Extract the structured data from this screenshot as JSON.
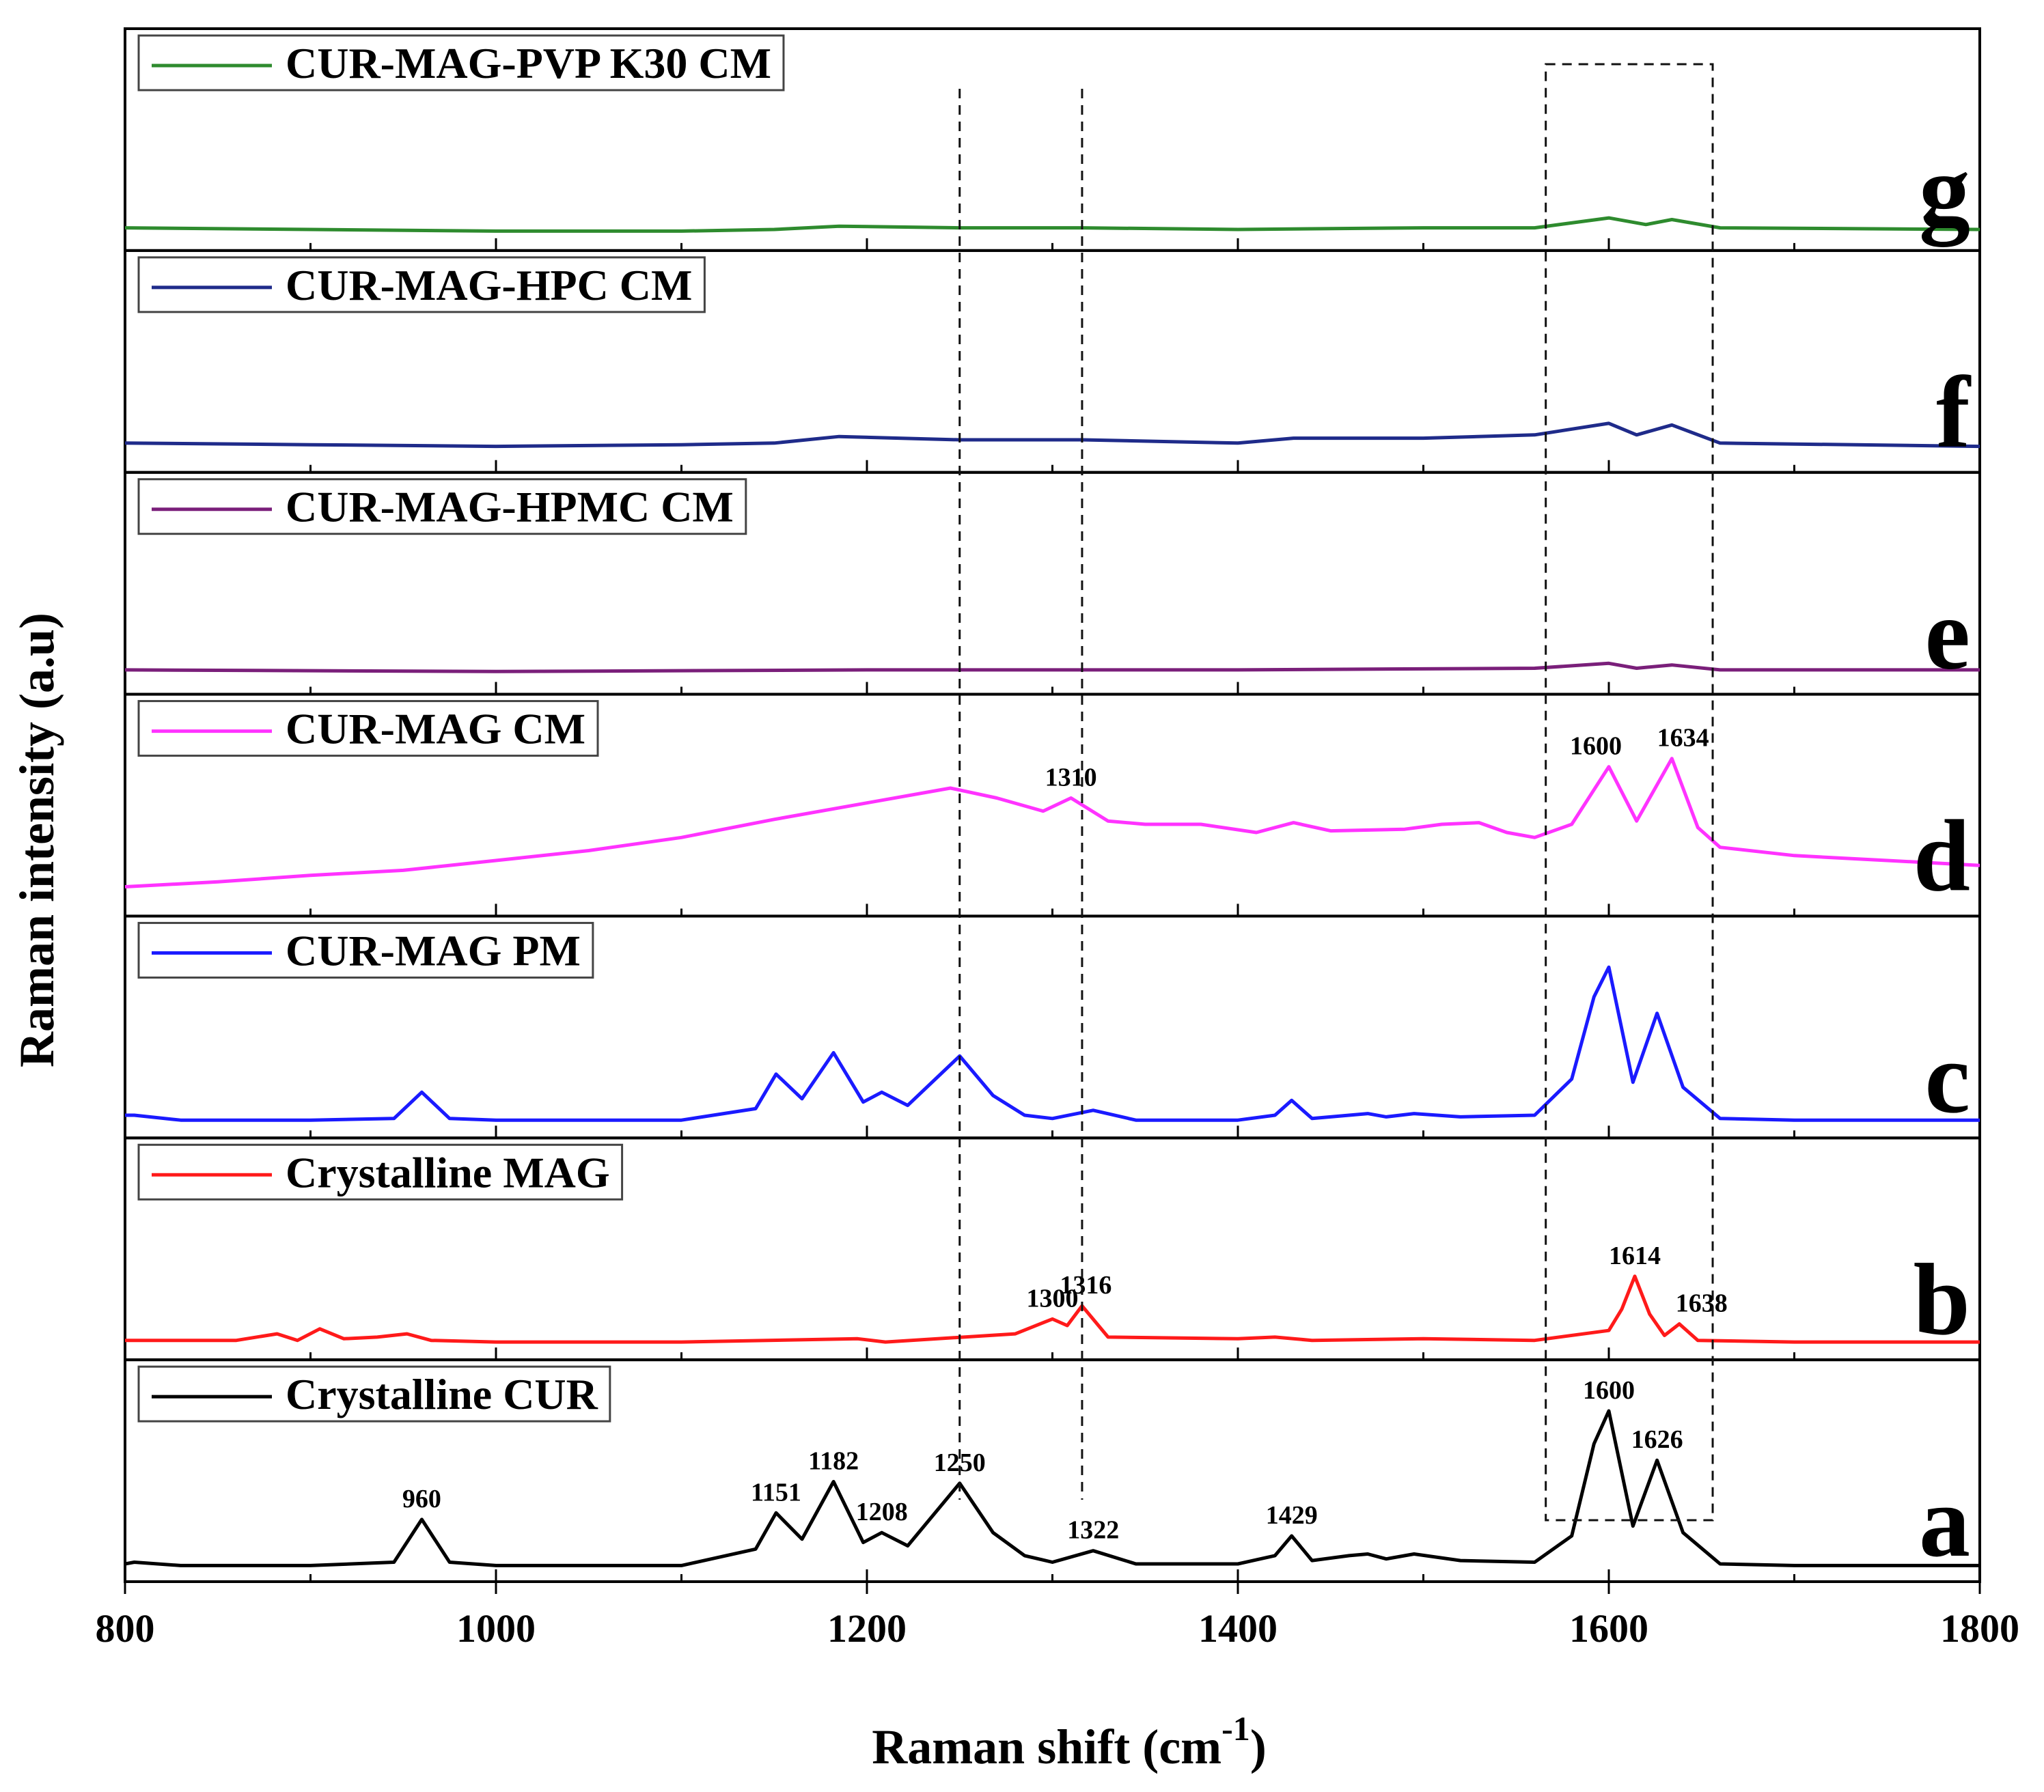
{
  "chart_data": {
    "type": "line",
    "title": "",
    "xlabel": "Raman shift (cm",
    "xlabel_sup": "-1",
    "xlabel_close": ")",
    "ylabel": "Raman intensity (a.u)",
    "xlim": [
      800,
      1800
    ],
    "xticks": [
      "800",
      "1000",
      "1200",
      "1400",
      "1600",
      "1800"
    ],
    "xtick_values": [
      800,
      1000,
      1200,
      1400,
      1600,
      1800
    ],
    "minor_tick_step": 100,
    "dashed_lines": [
      1250,
      1316
    ],
    "dashed_box_x": [
      1566,
      1656
    ],
    "panels": [
      {
        "letter": "g",
        "name": "CUR-MAG-PVP K30 CM",
        "color": "#2e8b2e",
        "baseline": 0.08,
        "x": [
          800,
          900,
          1000,
          1100,
          1150,
          1185,
          1250,
          1316,
          1400,
          1500,
          1560,
          1600,
          1620,
          1634,
          1660,
          1800
        ],
        "y": [
          0.08,
          0.07,
          0.06,
          0.06,
          0.07,
          0.09,
          0.08,
          0.08,
          0.07,
          0.08,
          0.08,
          0.14,
          0.1,
          0.13,
          0.08,
          0.07
        ],
        "peak_labels": []
      },
      {
        "letter": "f",
        "name": "CUR-MAG-HPC CM",
        "color": "#1f2b8a",
        "baseline": 0.12,
        "x": [
          800,
          900,
          1000,
          1100,
          1150,
          1185,
          1250,
          1316,
          1400,
          1430,
          1500,
          1560,
          1600,
          1615,
          1634,
          1660,
          1800
        ],
        "y": [
          0.12,
          0.11,
          0.1,
          0.11,
          0.12,
          0.16,
          0.14,
          0.14,
          0.12,
          0.15,
          0.15,
          0.17,
          0.24,
          0.17,
          0.23,
          0.12,
          0.1
        ],
        "peak_labels": []
      },
      {
        "letter": "e",
        "name": "CUR-MAG-HPMC CM",
        "color": "#7a1f7a",
        "baseline": 0.09,
        "x": [
          800,
          1000,
          1200,
          1400,
          1560,
          1600,
          1615,
          1634,
          1660,
          1800
        ],
        "y": [
          0.09,
          0.08,
          0.09,
          0.09,
          0.1,
          0.13,
          0.1,
          0.12,
          0.09,
          0.09
        ],
        "peak_labels": []
      },
      {
        "letter": "d",
        "name": "CUR-MAG CM",
        "color": "#ff33ff",
        "baseline": 0.12,
        "x": [
          800,
          850,
          900,
          950,
          1000,
          1050,
          1100,
          1150,
          1200,
          1245,
          1270,
          1295,
          1310,
          1330,
          1350,
          1380,
          1410,
          1430,
          1450,
          1490,
          1510,
          1530,
          1545,
          1560,
          1580,
          1600,
          1615,
          1634,
          1648,
          1660,
          1700,
          1750,
          1800
        ],
        "y": [
          0.12,
          0.15,
          0.19,
          0.22,
          0.28,
          0.34,
          0.42,
          0.53,
          0.63,
          0.72,
          0.66,
          0.58,
          0.66,
          0.52,
          0.5,
          0.5,
          0.45,
          0.51,
          0.46,
          0.47,
          0.5,
          0.51,
          0.45,
          0.42,
          0.5,
          0.85,
          0.52,
          0.9,
          0.48,
          0.36,
          0.31,
          0.28,
          0.25
        ],
        "peak_labels": [
          {
            "x": 1310,
            "y": 0.66,
            "text": "1310"
          },
          {
            "x": 1593,
            "y": 0.85,
            "text": "1600"
          },
          {
            "x": 1640,
            "y": 0.9,
            "text": "1634"
          }
        ]
      },
      {
        "letter": "c",
        "name": "CUR-MAG PM",
        "color": "#1a1aff",
        "baseline": 0.05,
        "x": [
          800,
          805,
          830,
          900,
          945,
          960,
          975,
          1000,
          1100,
          1140,
          1151,
          1165,
          1182,
          1198,
          1208,
          1222,
          1250,
          1268,
          1285,
          1300,
          1322,
          1345,
          1400,
          1420,
          1429,
          1440,
          1460,
          1470,
          1480,
          1495,
          1520,
          1560,
          1580,
          1592,
          1600,
          1613,
          1626,
          1640,
          1660,
          1700,
          1800
        ],
        "y": [
          0.08,
          0.08,
          0.05,
          0.05,
          0.06,
          0.22,
          0.06,
          0.05,
          0.05,
          0.12,
          0.33,
          0.18,
          0.46,
          0.16,
          0.22,
          0.14,
          0.44,
          0.2,
          0.08,
          0.06,
          0.11,
          0.05,
          0.05,
          0.08,
          0.17,
          0.06,
          0.08,
          0.09,
          0.07,
          0.09,
          0.07,
          0.08,
          0.3,
          0.8,
          0.98,
          0.28,
          0.7,
          0.25,
          0.06,
          0.05,
          0.05
        ],
        "peak_labels": []
      },
      {
        "letter": "b",
        "name": "Crystalline MAG",
        "color": "#ff1a1a",
        "baseline": 0.06,
        "x": [
          800,
          860,
          882,
          893,
          905,
          918,
          936,
          952,
          965,
          1000,
          1100,
          1195,
          1210,
          1280,
          1300,
          1308,
          1316,
          1330,
          1400,
          1420,
          1440,
          1500,
          1560,
          1600,
          1607,
          1614,
          1622,
          1630,
          1638,
          1648,
          1700,
          1800
        ],
        "y": [
          0.06,
          0.06,
          0.1,
          0.06,
          0.13,
          0.07,
          0.08,
          0.1,
          0.06,
          0.05,
          0.05,
          0.07,
          0.05,
          0.1,
          0.19,
          0.15,
          0.27,
          0.08,
          0.07,
          0.08,
          0.06,
          0.07,
          0.06,
          0.12,
          0.25,
          0.45,
          0.22,
          0.09,
          0.16,
          0.06,
          0.05,
          0.05
        ],
        "peak_labels": [
          {
            "x": 1300,
            "y": 0.19,
            "text": "1300"
          },
          {
            "x": 1318,
            "y": 0.27,
            "text": "1316"
          },
          {
            "x": 1614,
            "y": 0.45,
            "text": "1614"
          },
          {
            "x": 1650,
            "y": 0.16,
            "text": "1638"
          }
        ]
      },
      {
        "letter": "a",
        "name": "Crystalline CUR",
        "color": "#000000",
        "baseline": 0.05,
        "x": [
          800,
          805,
          830,
          900,
          945,
          960,
          975,
          1000,
          1100,
          1140,
          1151,
          1165,
          1182,
          1198,
          1208,
          1222,
          1250,
          1268,
          1285,
          1300,
          1322,
          1345,
          1400,
          1420,
          1429,
          1440,
          1460,
          1470,
          1480,
          1495,
          1520,
          1560,
          1580,
          1592,
          1600,
          1613,
          1626,
          1640,
          1660,
          1700,
          1800
        ],
        "y": [
          0.05,
          0.06,
          0.04,
          0.04,
          0.06,
          0.32,
          0.06,
          0.04,
          0.04,
          0.14,
          0.36,
          0.2,
          0.55,
          0.18,
          0.24,
          0.16,
          0.54,
          0.24,
          0.1,
          0.06,
          0.13,
          0.05,
          0.05,
          0.1,
          0.22,
          0.07,
          0.1,
          0.11,
          0.08,
          0.11,
          0.07,
          0.06,
          0.22,
          0.78,
          0.98,
          0.28,
          0.68,
          0.24,
          0.05,
          0.04,
          0.04
        ],
        "peak_labels": [
          {
            "x": 960,
            "y": 0.32,
            "text": "960"
          },
          {
            "x": 1151,
            "y": 0.36,
            "text": "1151"
          },
          {
            "x": 1182,
            "y": 0.55,
            "text": "1182"
          },
          {
            "x": 1208,
            "y": 0.24,
            "text": "1208"
          },
          {
            "x": 1250,
            "y": 0.54,
            "text": "1250"
          },
          {
            "x": 1322,
            "y": 0.13,
            "text": "1322"
          },
          {
            "x": 1429,
            "y": 0.22,
            "text": "1429"
          },
          {
            "x": 1600,
            "y": 0.98,
            "text": "1600"
          },
          {
            "x": 1626,
            "y": 0.68,
            "text": "1626"
          }
        ]
      }
    ]
  }
}
